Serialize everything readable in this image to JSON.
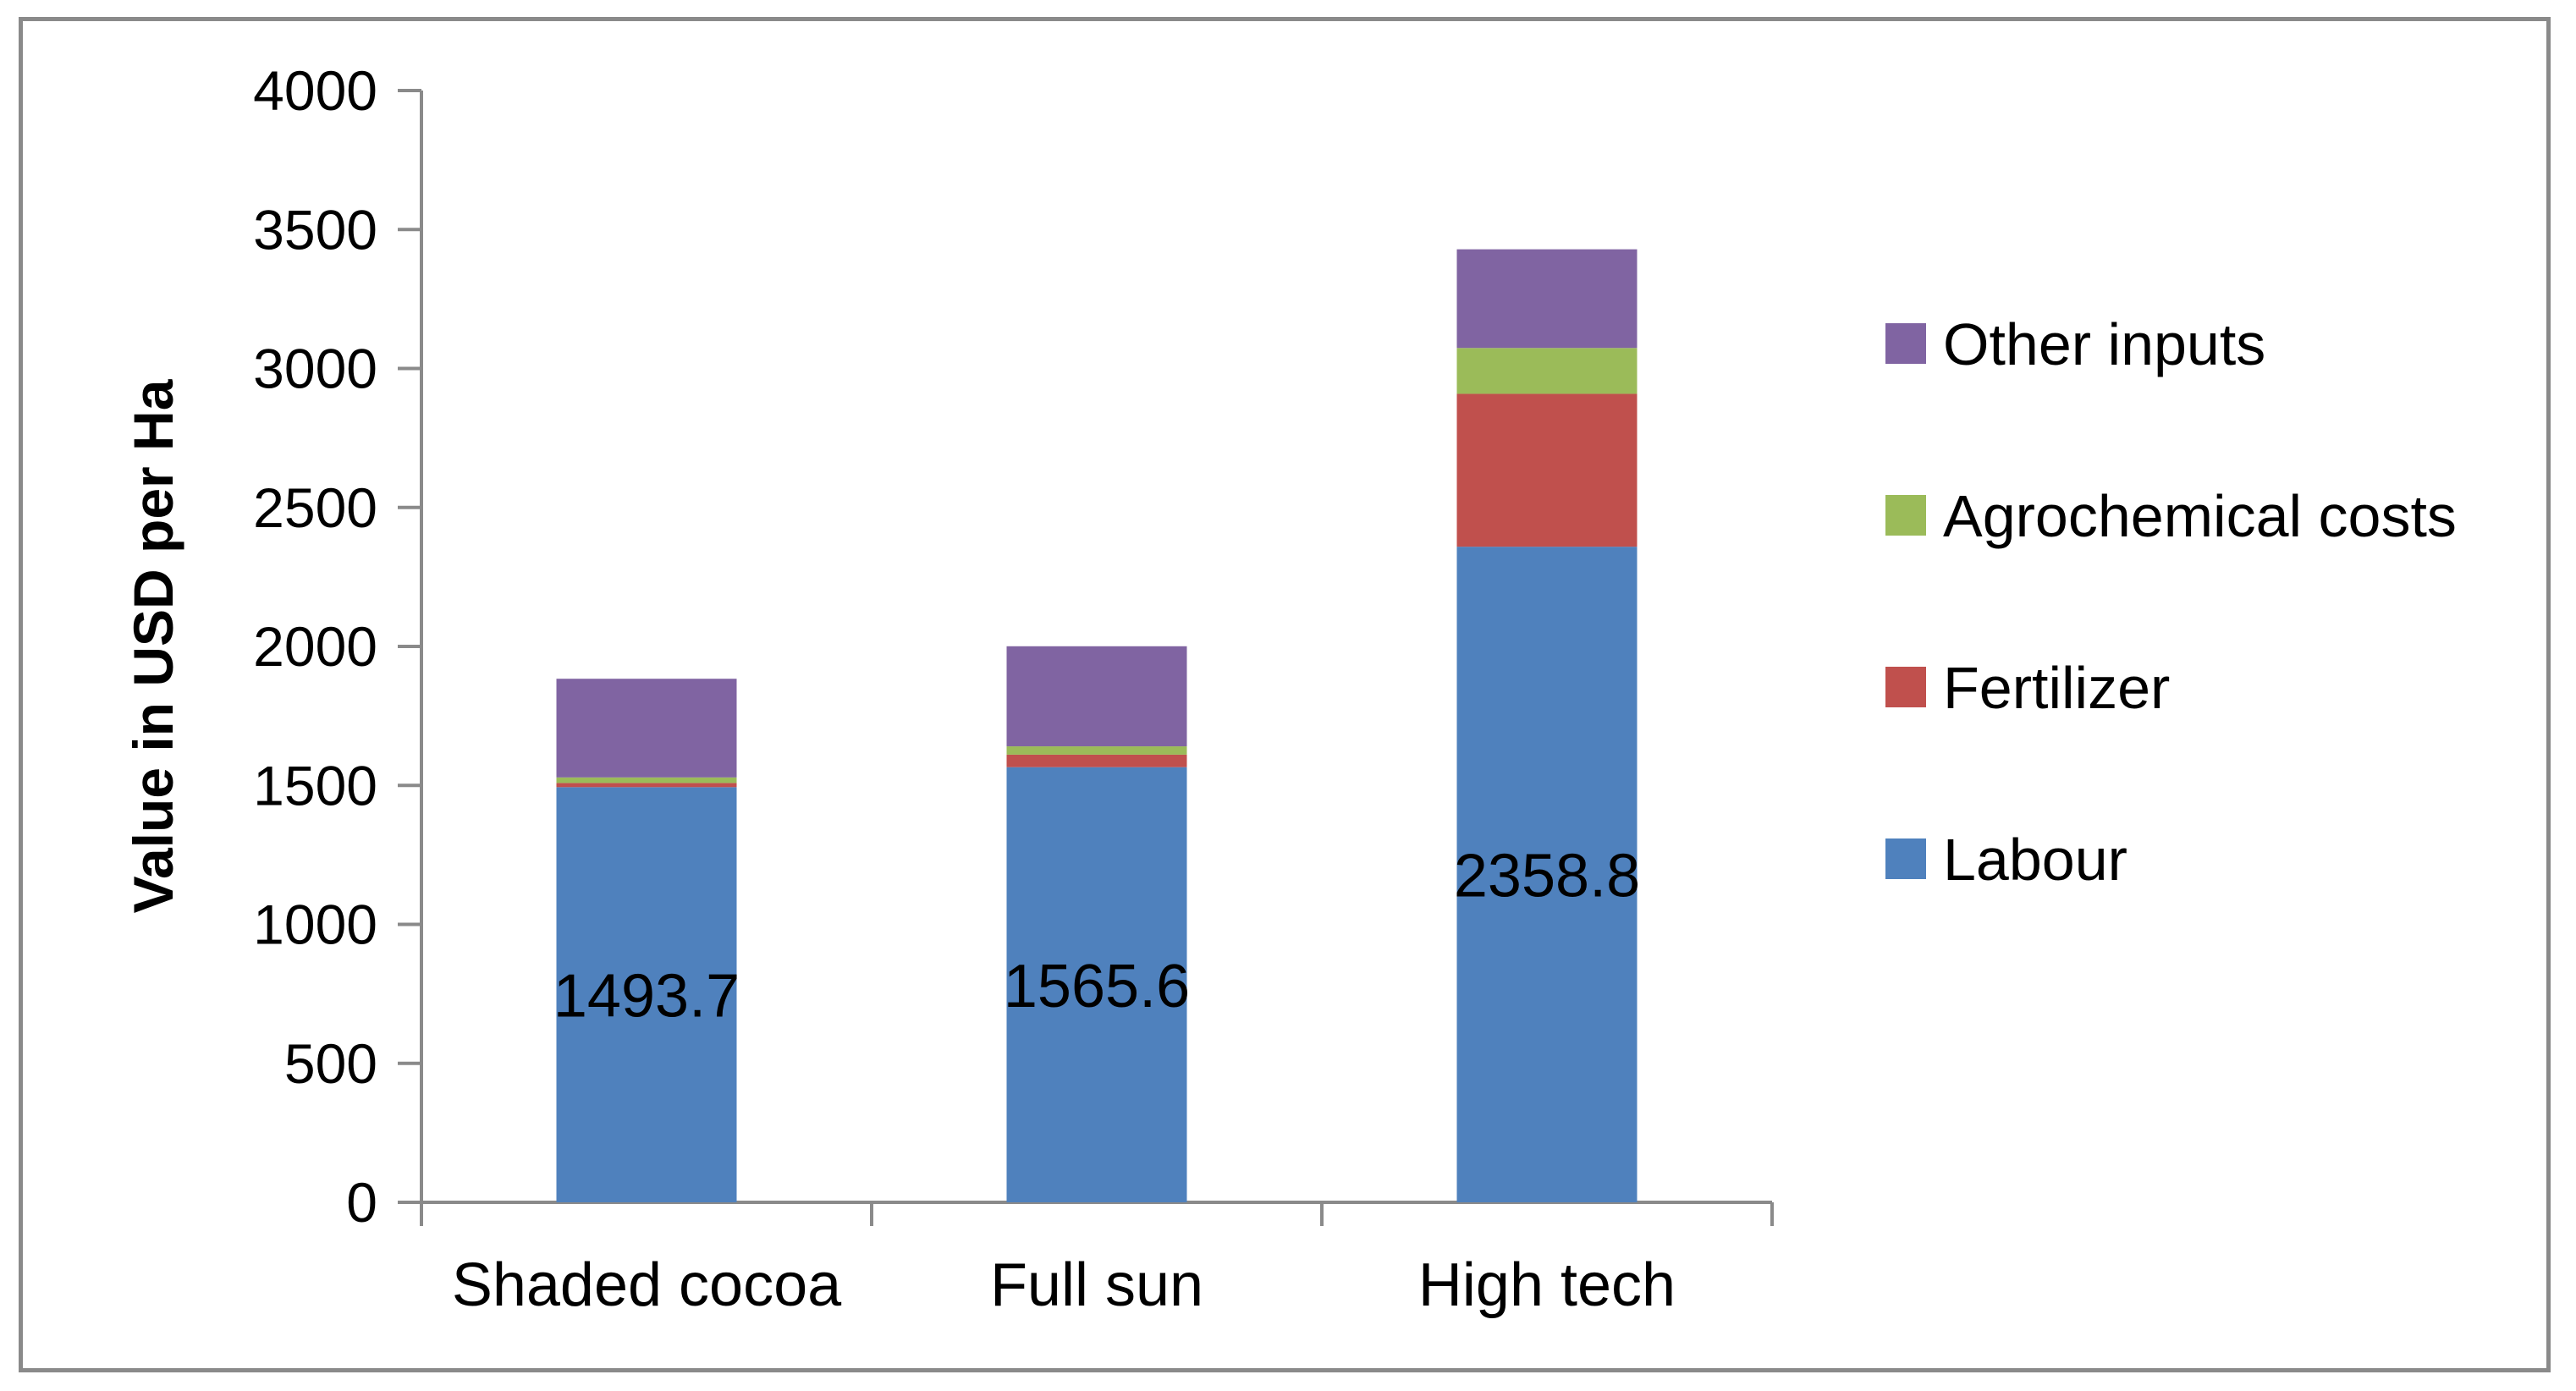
{
  "chart_data": {
    "type": "bar",
    "stacked": true,
    "title": "",
    "xlabel": "",
    "ylabel": "Value in USD per Ha",
    "ylim": [
      0,
      4000
    ],
    "y_ticks": [
      0,
      500,
      1000,
      1500,
      2000,
      2500,
      3000,
      3500,
      4000
    ],
    "grid": false,
    "legend_position": "right",
    "categories": [
      "Shaded cocoa",
      "Full sun",
      "High tech"
    ],
    "series": [
      {
        "name": "Labour",
        "color": "#4f81bd",
        "values": [
          1493.7,
          1565.6,
          2358.8
        ]
      },
      {
        "name": "Fertilizer",
        "color": "#c0504d",
        "values": [
          15,
          45,
          550
        ]
      },
      {
        "name": "Agrochemical costs",
        "color": "#9bbb59",
        "values": [
          20,
          30,
          165
        ]
      },
      {
        "name": "Other inputs",
        "color": "#8064a2",
        "values": [
          355,
          360,
          355
        ]
      }
    ],
    "data_labels": {
      "series": "Labour",
      "values": [
        "1493.7",
        "1565.6",
        "2358.8"
      ]
    }
  }
}
